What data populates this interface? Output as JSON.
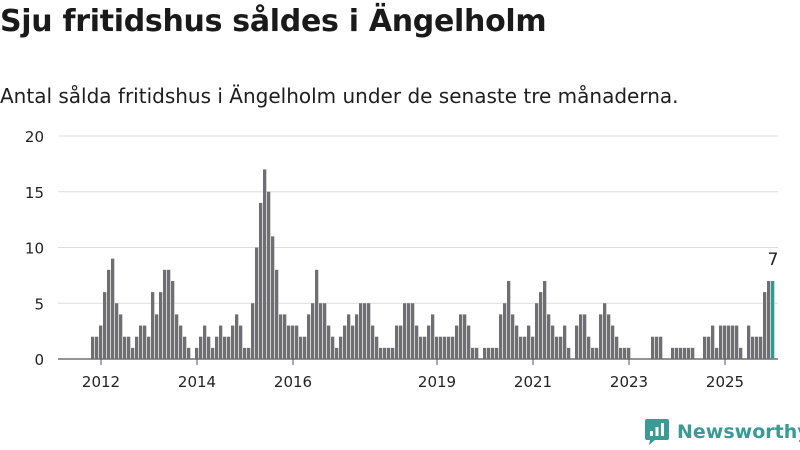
{
  "header": {
    "title": "Sju fritidshus såldes i Ängelholm",
    "subtitle": "Antal sålda fritidshus i Ängelholm under de senaste tre månaderna."
  },
  "brand": {
    "name": "Newsworthy"
  },
  "colors": {
    "bar": "#6e6e73",
    "highlight": "#2a9d8f",
    "grid": "#dddddd",
    "brand": "#3a9b94"
  },
  "chart_data": {
    "type": "bar",
    "title": "Sju fritidshus såldes i Ängelholm",
    "subtitle": "Antal sålda fritidshus i Ängelholm under de senaste tre månaderna.",
    "x_start": "2011-11",
    "x_end": "2025-06",
    "x_ticks": [
      "2012",
      "2014",
      "2016",
      "2019",
      "2021",
      "2023",
      "2025"
    ],
    "y_ticks": [
      0,
      5,
      10,
      15,
      20
    ],
    "ylim": [
      0,
      20
    ],
    "grid": true,
    "highlight_last": true,
    "last_value_label": "7",
    "values": [
      2,
      2,
      3,
      6,
      8,
      9,
      5,
      4,
      2,
      2,
      1,
      2,
      3,
      3,
      2,
      6,
      4,
      6,
      8,
      8,
      7,
      4,
      3,
      2,
      1,
      0,
      1,
      2,
      3,
      2,
      1,
      2,
      3,
      2,
      2,
      3,
      4,
      3,
      1,
      1,
      5,
      10,
      14,
      17,
      15,
      11,
      8,
      4,
      4,
      3,
      3,
      3,
      2,
      2,
      4,
      5,
      8,
      5,
      5,
      3,
      2,
      1,
      2,
      3,
      4,
      3,
      4,
      5,
      5,
      5,
      3,
      2,
      1,
      1,
      1,
      1,
      3,
      3,
      5,
      5,
      5,
      3,
      2,
      2,
      3,
      4,
      2,
      2,
      2,
      2,
      2,
      3,
      4,
      4,
      3,
      1,
      1,
      0,
      1,
      1,
      1,
      1,
      4,
      5,
      7,
      4,
      3,
      2,
      2,
      3,
      2,
      5,
      6,
      7,
      4,
      3,
      2,
      2,
      3,
      1,
      0,
      3,
      4,
      4,
      2,
      1,
      1,
      4,
      5,
      4,
      3,
      2,
      1,
      1,
      1,
      0,
      0,
      0,
      0,
      0,
      2,
      2,
      2,
      0,
      0,
      1,
      1,
      1,
      1,
      1,
      1,
      0,
      0,
      2,
      2,
      3,
      1,
      3,
      3,
      3,
      3,
      3,
      1,
      0,
      3,
      2,
      2,
      2,
      6,
      7,
      7
    ]
  }
}
